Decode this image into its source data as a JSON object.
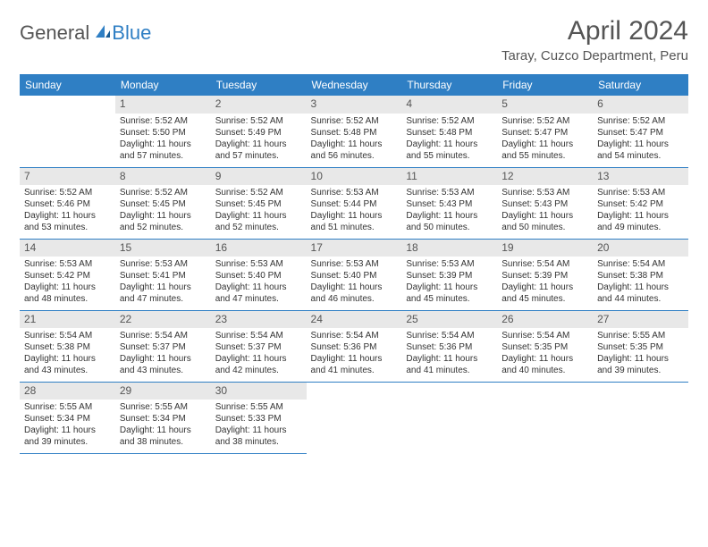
{
  "brand": {
    "part1": "General",
    "part2": "Blue"
  },
  "title": "April 2024",
  "location": "Taray, Cuzco Department, Peru",
  "colors": {
    "header_bg": "#2f7fc4",
    "daynum_bg": "#e8e8e8",
    "text": "#333333",
    "muted": "#555555",
    "rule": "#2f7fc4"
  },
  "days_of_week": [
    "Sunday",
    "Monday",
    "Tuesday",
    "Wednesday",
    "Thursday",
    "Friday",
    "Saturday"
  ],
  "weeks": [
    [
      null,
      {
        "n": "1",
        "sr": "Sunrise: 5:52 AM",
        "ss": "Sunset: 5:50 PM",
        "d1": "Daylight: 11 hours",
        "d2": "and 57 minutes."
      },
      {
        "n": "2",
        "sr": "Sunrise: 5:52 AM",
        "ss": "Sunset: 5:49 PM",
        "d1": "Daylight: 11 hours",
        "d2": "and 57 minutes."
      },
      {
        "n": "3",
        "sr": "Sunrise: 5:52 AM",
        "ss": "Sunset: 5:48 PM",
        "d1": "Daylight: 11 hours",
        "d2": "and 56 minutes."
      },
      {
        "n": "4",
        "sr": "Sunrise: 5:52 AM",
        "ss": "Sunset: 5:48 PM",
        "d1": "Daylight: 11 hours",
        "d2": "and 55 minutes."
      },
      {
        "n": "5",
        "sr": "Sunrise: 5:52 AM",
        "ss": "Sunset: 5:47 PM",
        "d1": "Daylight: 11 hours",
        "d2": "and 55 minutes."
      },
      {
        "n": "6",
        "sr": "Sunrise: 5:52 AM",
        "ss": "Sunset: 5:47 PM",
        "d1": "Daylight: 11 hours",
        "d2": "and 54 minutes."
      }
    ],
    [
      {
        "n": "7",
        "sr": "Sunrise: 5:52 AM",
        "ss": "Sunset: 5:46 PM",
        "d1": "Daylight: 11 hours",
        "d2": "and 53 minutes."
      },
      {
        "n": "8",
        "sr": "Sunrise: 5:52 AM",
        "ss": "Sunset: 5:45 PM",
        "d1": "Daylight: 11 hours",
        "d2": "and 52 minutes."
      },
      {
        "n": "9",
        "sr": "Sunrise: 5:52 AM",
        "ss": "Sunset: 5:45 PM",
        "d1": "Daylight: 11 hours",
        "d2": "and 52 minutes."
      },
      {
        "n": "10",
        "sr": "Sunrise: 5:53 AM",
        "ss": "Sunset: 5:44 PM",
        "d1": "Daylight: 11 hours",
        "d2": "and 51 minutes."
      },
      {
        "n": "11",
        "sr": "Sunrise: 5:53 AM",
        "ss": "Sunset: 5:43 PM",
        "d1": "Daylight: 11 hours",
        "d2": "and 50 minutes."
      },
      {
        "n": "12",
        "sr": "Sunrise: 5:53 AM",
        "ss": "Sunset: 5:43 PM",
        "d1": "Daylight: 11 hours",
        "d2": "and 50 minutes."
      },
      {
        "n": "13",
        "sr": "Sunrise: 5:53 AM",
        "ss": "Sunset: 5:42 PM",
        "d1": "Daylight: 11 hours",
        "d2": "and 49 minutes."
      }
    ],
    [
      {
        "n": "14",
        "sr": "Sunrise: 5:53 AM",
        "ss": "Sunset: 5:42 PM",
        "d1": "Daylight: 11 hours",
        "d2": "and 48 minutes."
      },
      {
        "n": "15",
        "sr": "Sunrise: 5:53 AM",
        "ss": "Sunset: 5:41 PM",
        "d1": "Daylight: 11 hours",
        "d2": "and 47 minutes."
      },
      {
        "n": "16",
        "sr": "Sunrise: 5:53 AM",
        "ss": "Sunset: 5:40 PM",
        "d1": "Daylight: 11 hours",
        "d2": "and 47 minutes."
      },
      {
        "n": "17",
        "sr": "Sunrise: 5:53 AM",
        "ss": "Sunset: 5:40 PM",
        "d1": "Daylight: 11 hours",
        "d2": "and 46 minutes."
      },
      {
        "n": "18",
        "sr": "Sunrise: 5:53 AM",
        "ss": "Sunset: 5:39 PM",
        "d1": "Daylight: 11 hours",
        "d2": "and 45 minutes."
      },
      {
        "n": "19",
        "sr": "Sunrise: 5:54 AM",
        "ss": "Sunset: 5:39 PM",
        "d1": "Daylight: 11 hours",
        "d2": "and 45 minutes."
      },
      {
        "n": "20",
        "sr": "Sunrise: 5:54 AM",
        "ss": "Sunset: 5:38 PM",
        "d1": "Daylight: 11 hours",
        "d2": "and 44 minutes."
      }
    ],
    [
      {
        "n": "21",
        "sr": "Sunrise: 5:54 AM",
        "ss": "Sunset: 5:38 PM",
        "d1": "Daylight: 11 hours",
        "d2": "and 43 minutes."
      },
      {
        "n": "22",
        "sr": "Sunrise: 5:54 AM",
        "ss": "Sunset: 5:37 PM",
        "d1": "Daylight: 11 hours",
        "d2": "and 43 minutes."
      },
      {
        "n": "23",
        "sr": "Sunrise: 5:54 AM",
        "ss": "Sunset: 5:37 PM",
        "d1": "Daylight: 11 hours",
        "d2": "and 42 minutes."
      },
      {
        "n": "24",
        "sr": "Sunrise: 5:54 AM",
        "ss": "Sunset: 5:36 PM",
        "d1": "Daylight: 11 hours",
        "d2": "and 41 minutes."
      },
      {
        "n": "25",
        "sr": "Sunrise: 5:54 AM",
        "ss": "Sunset: 5:36 PM",
        "d1": "Daylight: 11 hours",
        "d2": "and 41 minutes."
      },
      {
        "n": "26",
        "sr": "Sunrise: 5:54 AM",
        "ss": "Sunset: 5:35 PM",
        "d1": "Daylight: 11 hours",
        "d2": "and 40 minutes."
      },
      {
        "n": "27",
        "sr": "Sunrise: 5:55 AM",
        "ss": "Sunset: 5:35 PM",
        "d1": "Daylight: 11 hours",
        "d2": "and 39 minutes."
      }
    ],
    [
      {
        "n": "28",
        "sr": "Sunrise: 5:55 AM",
        "ss": "Sunset: 5:34 PM",
        "d1": "Daylight: 11 hours",
        "d2": "and 39 minutes."
      },
      {
        "n": "29",
        "sr": "Sunrise: 5:55 AM",
        "ss": "Sunset: 5:34 PM",
        "d1": "Daylight: 11 hours",
        "d2": "and 38 minutes."
      },
      {
        "n": "30",
        "sr": "Sunrise: 5:55 AM",
        "ss": "Sunset: 5:33 PM",
        "d1": "Daylight: 11 hours",
        "d2": "and 38 minutes."
      },
      null,
      null,
      null,
      null
    ]
  ]
}
